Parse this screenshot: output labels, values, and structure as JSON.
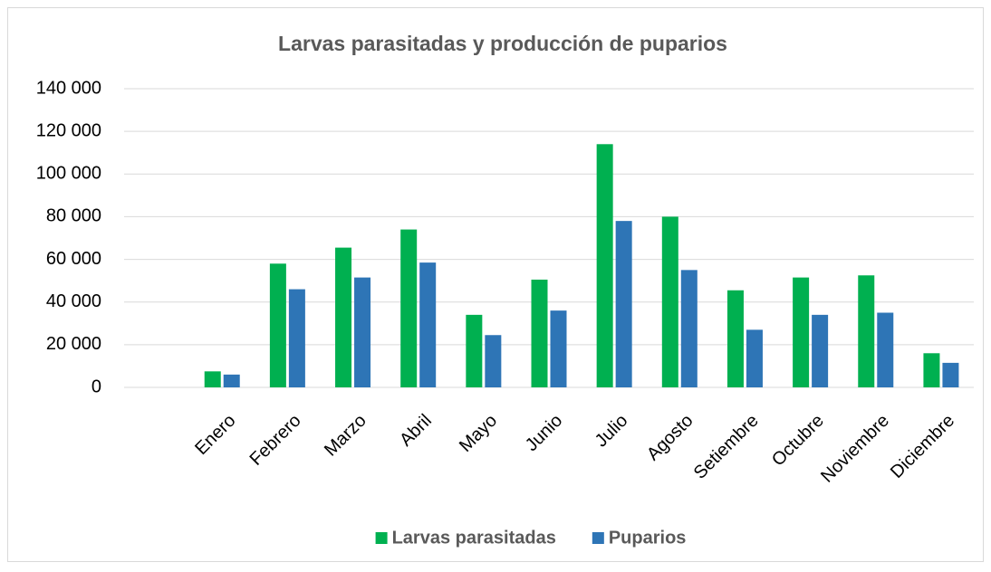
{
  "chart_data": {
    "type": "bar",
    "title": "Larvas parasitadas y producción de puparios",
    "categories": [
      null,
      "Enero",
      "Febrero",
      "Marzo",
      "Abril",
      "Mayo",
      "Junio",
      "Julio",
      "Agosto",
      "Setiembre",
      "Octubre",
      "Noviembre",
      "Diciembre"
    ],
    "series": [
      {
        "name": "Larvas parasitadas",
        "color": "#00b050",
        "values": [
          null,
          7500,
          58000,
          65500,
          74000,
          34000,
          50500,
          114000,
          80000,
          45500,
          51500,
          52500,
          16000
        ]
      },
      {
        "name": "Puparios",
        "color": "#2e75b6",
        "values": [
          null,
          6000,
          46000,
          51500,
          58500,
          24500,
          36000,
          78000,
          55000,
          27000,
          34000,
          35000,
          11500
        ]
      }
    ],
    "ylim": [
      0,
      140000
    ],
    "yticks": [
      {
        "value": 0,
        "label": "0"
      },
      {
        "value": 20000,
        "label": "20 000"
      },
      {
        "value": 40000,
        "label": "40 000"
      },
      {
        "value": 60000,
        "label": "60 000"
      },
      {
        "value": 80000,
        "label": "80 000"
      },
      {
        "value": 100000,
        "label": "100 000"
      },
      {
        "value": 120000,
        "label": "120 000"
      },
      {
        "value": 140000,
        "label": "140 000"
      }
    ],
    "grid": true,
    "legend": "bottom"
  }
}
